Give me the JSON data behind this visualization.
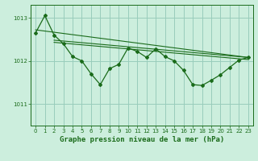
{
  "title": "Graphe pression niveau de la mer (hPa)",
  "bg_color": "#cceedd",
  "grid_color": "#99ccbb",
  "line_color": "#1a6b1a",
  "ylim": [
    1010.5,
    1013.3
  ],
  "yticks": [
    1011,
    1012,
    1013
  ],
  "xlim": [
    -0.5,
    23.5
  ],
  "xticks": [
    0,
    1,
    2,
    3,
    4,
    5,
    6,
    7,
    8,
    9,
    10,
    11,
    12,
    13,
    14,
    15,
    16,
    17,
    18,
    19,
    20,
    21,
    22,
    23
  ],
  "series1_x": [
    0,
    1,
    2,
    3,
    4,
    5,
    6,
    7,
    8,
    9,
    10,
    11,
    12,
    13,
    14,
    15,
    16,
    17,
    18,
    19,
    20,
    21,
    22,
    23
  ],
  "series1_y": [
    1012.65,
    1013.05,
    1012.6,
    1012.4,
    1012.1,
    1012.0,
    1011.7,
    1011.45,
    1011.82,
    1011.92,
    1012.3,
    1012.22,
    1012.08,
    1012.28,
    1012.1,
    1012.0,
    1011.78,
    1011.45,
    1011.43,
    1011.55,
    1011.68,
    1011.85,
    1012.02,
    1012.08
  ],
  "trend1_x": [
    0,
    23
  ],
  "trend1_y": [
    1012.72,
    1012.08
  ],
  "trend2_x": [
    2,
    23
  ],
  "trend2_y": [
    1012.48,
    1012.08
  ],
  "trend3_x": [
    2,
    23
  ],
  "trend3_y": [
    1012.43,
    1012.03
  ],
  "xlabel_fontsize": 6.5,
  "tick_fontsize": 5.0
}
